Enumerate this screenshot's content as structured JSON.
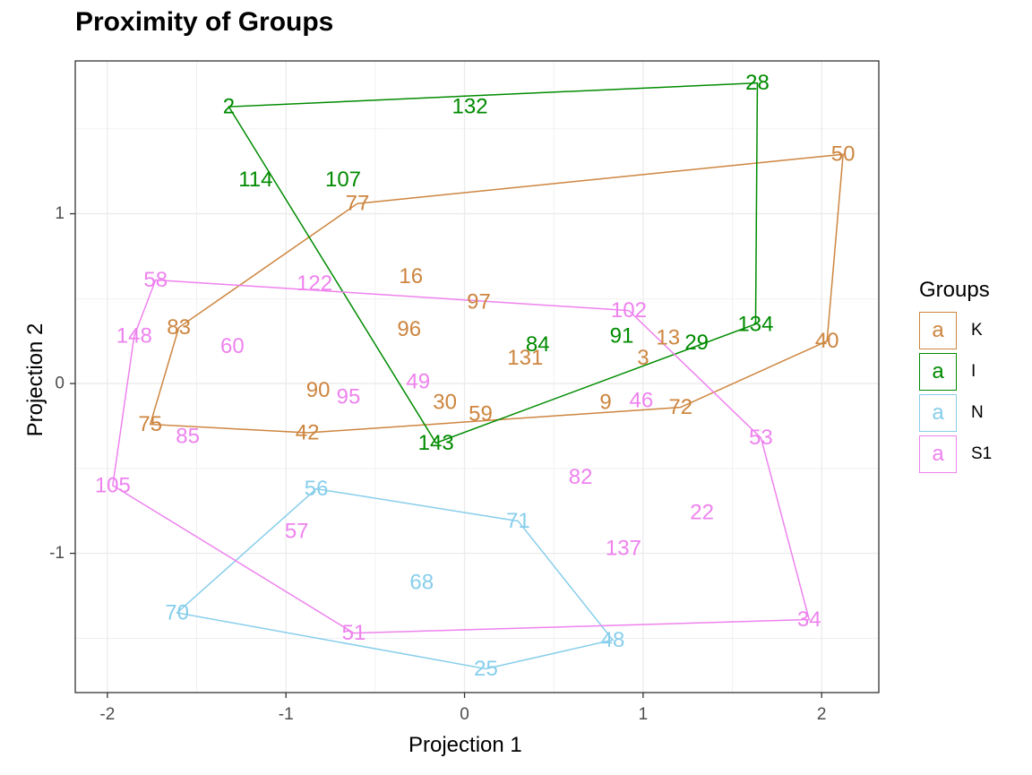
{
  "chart_data": {
    "type": "scatter",
    "title": "Proximity of Groups",
    "xlabel": "Projection 1",
    "ylabel": "Projection 2",
    "xlim": [
      -2.18,
      2.32
    ],
    "ylim": [
      -1.82,
      1.9
    ],
    "x_ticks": [
      -2,
      -1,
      0,
      1,
      2
    ],
    "x_tick_labels": [
      "-2",
      "-1",
      "0",
      "1",
      "2"
    ],
    "y_ticks": [
      -1,
      0,
      1
    ],
    "y_tick_labels": [
      "-1",
      "0",
      "1"
    ],
    "grid": true,
    "legend_title": "Groups",
    "legend_position": "right",
    "series": [
      {
        "name": "K",
        "color": "#CD853F",
        "points": [
          {
            "label": "50",
            "x": 2.12,
            "y": 1.35
          },
          {
            "label": "77",
            "x": -0.6,
            "y": 1.06
          },
          {
            "label": "16",
            "x": -0.3,
            "y": 0.63
          },
          {
            "label": "97",
            "x": 0.08,
            "y": 0.48
          },
          {
            "label": "83",
            "x": -1.6,
            "y": 0.33
          },
          {
            "label": "96",
            "x": -0.31,
            "y": 0.32
          },
          {
            "label": "13",
            "x": 1.14,
            "y": 0.27
          },
          {
            "label": "40",
            "x": 2.03,
            "y": 0.25
          },
          {
            "label": "131",
            "x": 0.34,
            "y": 0.15
          },
          {
            "label": "3",
            "x": 1.0,
            "y": 0.15
          },
          {
            "label": "90",
            "x": -0.82,
            "y": -0.04
          },
          {
            "label": "30",
            "x": -0.11,
            "y": -0.11
          },
          {
            "label": "9",
            "x": 0.79,
            "y": -0.11
          },
          {
            "label": "72",
            "x": 1.21,
            "y": -0.14
          },
          {
            "label": "59",
            "x": 0.09,
            "y": -0.18
          },
          {
            "label": "75",
            "x": -1.76,
            "y": -0.24
          },
          {
            "label": "42",
            "x": -0.88,
            "y": -0.29
          }
        ],
        "hull": [
          "50",
          "40",
          "72",
          "42",
          "75",
          "83",
          "77"
        ]
      },
      {
        "name": "I",
        "color": "#008B00",
        "points": [
          {
            "label": "28",
            "x": 1.64,
            "y": 1.77
          },
          {
            "label": "2",
            "x": -1.32,
            "y": 1.63
          },
          {
            "label": "132",
            "x": 0.03,
            "y": 1.63
          },
          {
            "label": "114",
            "x": -1.17,
            "y": 1.2
          },
          {
            "label": "107",
            "x": -0.68,
            "y": 1.2
          },
          {
            "label": "134",
            "x": 1.63,
            "y": 0.35
          },
          {
            "label": "91",
            "x": 0.88,
            "y": 0.28
          },
          {
            "label": "29",
            "x": 1.3,
            "y": 0.24
          },
          {
            "label": "84",
            "x": 0.41,
            "y": 0.23
          },
          {
            "label": "143",
            "x": -0.16,
            "y": -0.35
          }
        ],
        "hull": [
          "28",
          "134",
          "143",
          "2"
        ]
      },
      {
        "name": "N",
        "color": "#87CEEB",
        "points": [
          {
            "label": "56",
            "x": -0.83,
            "y": -0.62
          },
          {
            "label": "71",
            "x": 0.3,
            "y": -0.81
          },
          {
            "label": "68",
            "x": -0.24,
            "y": -1.17
          },
          {
            "label": "70",
            "x": -1.61,
            "y": -1.35
          },
          {
            "label": "48",
            "x": 0.83,
            "y": -1.51
          },
          {
            "label": "25",
            "x": 0.12,
            "y": -1.68
          }
        ],
        "hull": [
          "56",
          "71",
          "48",
          "25",
          "70"
        ]
      },
      {
        "name": "S1",
        "color": "#EE82EE",
        "points": [
          {
            "label": "58",
            "x": -1.73,
            "y": 0.61
          },
          {
            "label": "122",
            "x": -0.84,
            "y": 0.59
          },
          {
            "label": "102",
            "x": 0.92,
            "y": 0.43
          },
          {
            "label": "148",
            "x": -1.85,
            "y": 0.28
          },
          {
            "label": "60",
            "x": -1.3,
            "y": 0.22
          },
          {
            "label": "49",
            "x": -0.26,
            "y": 0.01
          },
          {
            "label": "95",
            "x": -0.65,
            "y": -0.08
          },
          {
            "label": "46",
            "x": 0.99,
            "y": -0.1
          },
          {
            "label": "85",
            "x": -1.55,
            "y": -0.31
          },
          {
            "label": "53",
            "x": 1.66,
            "y": -0.32
          },
          {
            "label": "105",
            "x": -1.97,
            "y": -0.6
          },
          {
            "label": "82",
            "x": 0.65,
            "y": -0.55
          },
          {
            "label": "22",
            "x": 1.33,
            "y": -0.76
          },
          {
            "label": "57",
            "x": -0.94,
            "y": -0.87
          },
          {
            "label": "137",
            "x": 0.89,
            "y": -0.97
          },
          {
            "label": "34",
            "x": 1.93,
            "y": -1.39
          },
          {
            "label": "51",
            "x": -0.62,
            "y": -1.47
          }
        ],
        "hull": [
          "58",
          "102",
          "53",
          "34",
          "51",
          "105",
          "148"
        ]
      }
    ]
  }
}
